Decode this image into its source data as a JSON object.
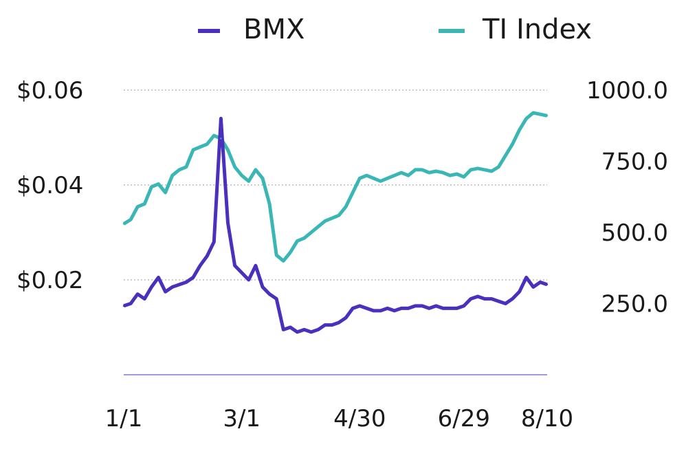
{
  "chart_data": {
    "type": "line",
    "title": "",
    "x": [
      "1/1",
      "1/4",
      "1/8",
      "1/12",
      "1/16",
      "1/20",
      "1/24",
      "1/28",
      "2/1",
      "2/4",
      "2/8",
      "2/12",
      "2/16",
      "2/20",
      "2/24",
      "2/26",
      "2/28",
      "3/1",
      "3/3",
      "3/5",
      "3/7",
      "3/9",
      "3/12",
      "3/15",
      "3/19",
      "3/23",
      "3/27",
      "3/31",
      "4/4",
      "4/8",
      "4/12",
      "4/16",
      "4/20",
      "4/24",
      "4/30",
      "5/2",
      "5/6",
      "5/10",
      "5/14",
      "5/18",
      "5/22",
      "5/26",
      "5/30",
      "6/3",
      "6/7",
      "6/11",
      "6/15",
      "6/19",
      "6/23",
      "6/29",
      "7/3",
      "7/7",
      "7/11",
      "7/15",
      "7/19",
      "7/23",
      "7/27",
      "7/31",
      "8/3",
      "8/6",
      "8/8",
      "8/10"
    ],
    "x_ticks": [
      "1/1",
      "3/1",
      "4/30",
      "6/29",
      "8/10"
    ],
    "series": [
      {
        "name": "BMX",
        "axis": "left",
        "color": "#4b2fbd",
        "values": [
          0.0145,
          0.015,
          0.017,
          0.016,
          0.0185,
          0.0205,
          0.0175,
          0.0185,
          0.019,
          0.0195,
          0.0205,
          0.023,
          0.025,
          0.028,
          0.054,
          0.032,
          0.023,
          0.0215,
          0.02,
          0.023,
          0.0185,
          0.017,
          0.016,
          0.0095,
          0.01,
          0.009,
          0.0095,
          0.009,
          0.0095,
          0.0105,
          0.0105,
          0.011,
          0.012,
          0.014,
          0.0145,
          0.014,
          0.0135,
          0.0135,
          0.014,
          0.0135,
          0.014,
          0.014,
          0.0145,
          0.0145,
          0.014,
          0.0145,
          0.014,
          0.014,
          0.014,
          0.0145,
          0.016,
          0.0165,
          0.016,
          0.016,
          0.0155,
          0.015,
          0.016,
          0.0175,
          0.0205,
          0.0185,
          0.0195,
          0.019
        ]
      },
      {
        "name": "TI Index",
        "axis": "right",
        "color": "#3ab7b5",
        "values": [
          530,
          545,
          590,
          600,
          660,
          670,
          640,
          700,
          720,
          730,
          790,
          800,
          810,
          840,
          830,
          790,
          730,
          700,
          680,
          720,
          690,
          600,
          420,
          400,
          430,
          470,
          480,
          500,
          520,
          540,
          550,
          560,
          590,
          640,
          690,
          700,
          690,
          680,
          690,
          700,
          710,
          700,
          720,
          720,
          710,
          715,
          710,
          700,
          705,
          695,
          720,
          725,
          720,
          715,
          730,
          770,
          810,
          860,
          900,
          920,
          915,
          910
        ]
      }
    ],
    "y_left": {
      "ticks": [
        "$0.06",
        "$0.04",
        "$0.02"
      ],
      "tick_values": [
        0.06,
        0.04,
        0.02
      ],
      "range": [
        0,
        0.06
      ]
    },
    "y_right": {
      "ticks": [
        "1000.0",
        "750.0",
        "500.0",
        "250.0"
      ],
      "tick_values": [
        1000,
        750,
        500,
        250
      ],
      "range": [
        0,
        1000
      ]
    },
    "grid": "horizontal-dotted",
    "legend_position": "top-center",
    "legend": [
      "BMX",
      "TI Index"
    ],
    "xlabel": "",
    "ylabel": ""
  }
}
